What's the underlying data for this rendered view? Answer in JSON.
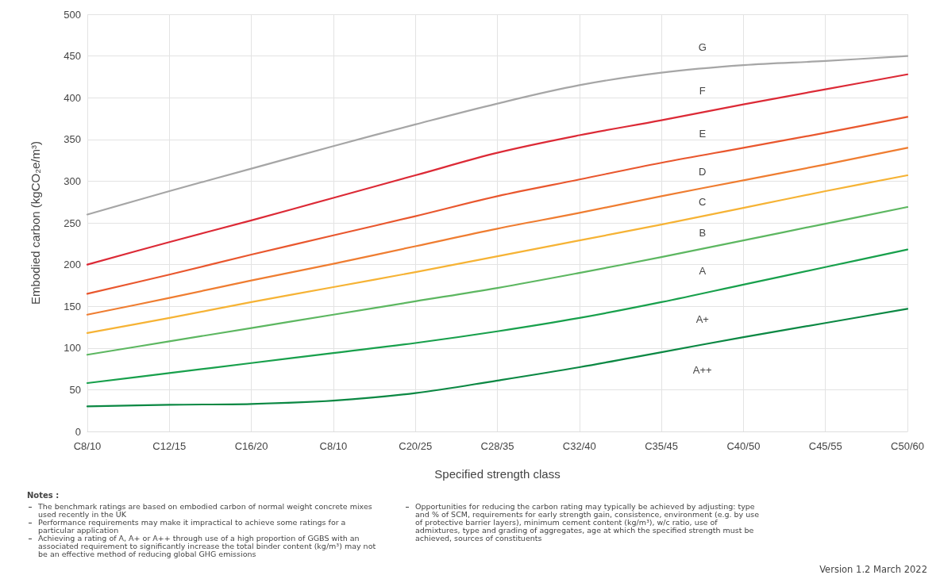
{
  "chart_data": {
    "type": "line",
    "xlabel": "Specified strength class",
    "ylabel": "Embodied carbon (kgCO₂e/m³)",
    "categories": [
      "C8/10",
      "C12/15",
      "C16/20",
      "C8/10",
      "C20/25",
      "C28/35",
      "C32/40",
      "C35/45",
      "C40/50",
      "C45/55",
      "C50/60"
    ],
    "series": [
      {
        "color": "#a6a6a6",
        "values": [
          260,
          288,
          315,
          342,
          368,
          393,
          415,
          430,
          439,
          444,
          450
        ]
      },
      {
        "color": "#dc2a36",
        "values": [
          200,
          227,
          253,
          280,
          307,
          334,
          355,
          373,
          392,
          410,
          428
        ]
      },
      {
        "color": "#e9572e",
        "values": [
          165,
          188,
          212,
          235,
          258,
          282,
          302,
          322,
          340,
          358,
          377
        ]
      },
      {
        "color": "#ef7d31",
        "values": [
          140,
          160,
          181,
          201,
          222,
          243,
          262,
          282,
          301,
          320,
          340
        ]
      },
      {
        "color": "#f6b335",
        "values": [
          118,
          136,
          155,
          173,
          191,
          210,
          229,
          248,
          268,
          288,
          307
        ]
      },
      {
        "color": "#5db761",
        "values": [
          92,
          108,
          124,
          140,
          156,
          172,
          190,
          209,
          229,
          249,
          269
        ]
      },
      {
        "color": "#18a04c",
        "values": [
          58,
          70,
          82,
          94,
          106,
          120,
          136,
          155,
          176,
          197,
          218
        ]
      },
      {
        "color": "#0b8843",
        "values": [
          30,
          32,
          33,
          37,
          46,
          61,
          77,
          95,
          113,
          130,
          147
        ]
      }
    ],
    "ylim": [
      0,
      500
    ],
    "yticks": [
      0,
      50,
      100,
      150,
      200,
      250,
      300,
      350,
      400,
      450,
      500
    ],
    "grid": true,
    "marker": "none",
    "line_style": "solid",
    "annotations": [
      "G",
      "F",
      "E",
      "D",
      "C",
      "B",
      "A",
      "A+",
      "A++",
      "Notes :",
      "The benchmark ratings are based on embodied carbon of normal weight concrete mixes used recently in the UK",
      "Performance requirements may make it impractical to achieve some ratings for a particular application",
      "Achieving a rating of A, A+ or A++ through use of a high proportion of GGBS with an associated requirement to significantly increase the total binder content (kg/m³) may not be an effective method of reducing global GHG emissions",
      "Opportunities for reducing the carbon rating may typically be achieved by adjusting: type and % of SCM, requirements for early strength gain, consistence, environment (e.g. by use of protective barrier layers), minimum cement content (kg/m³), w/c ratio, use of admixtures, type and grading of aggregates, age at which the specified strength must be achieved, sources of constituents",
      "Version 1.2 March 2022"
    ]
  }
}
